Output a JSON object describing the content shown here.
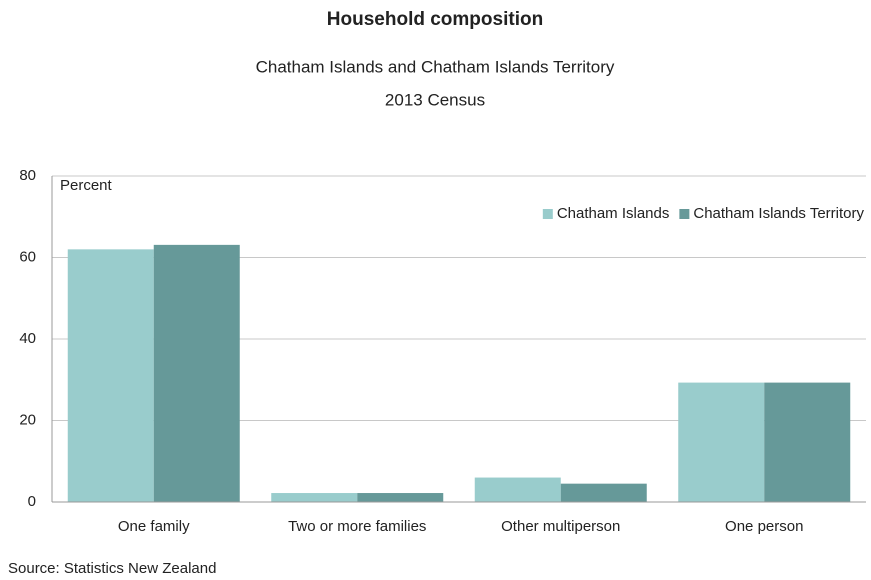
{
  "chart_data": {
    "type": "bar",
    "title": "Household composition",
    "subtitle": "Chatham Islands and Chatham Islands Territory",
    "subtitle2": "2013 Census",
    "y_label": "Percent",
    "source": "Source: Statistics New Zealand",
    "categories": [
      "One family",
      "Two or more families",
      "Other multiperson",
      "One person"
    ],
    "series": [
      {
        "name": "Chatham Islands",
        "color": "#99cccc",
        "values": [
          62,
          2.2,
          6,
          29.3
        ]
      },
      {
        "name": "Chatham Islands Territory",
        "color": "#669999",
        "values": [
          63.1,
          2.2,
          4.5,
          29.3
        ]
      }
    ],
    "ylim": [
      0,
      80
    ],
    "yticks": [
      0,
      20,
      40,
      60,
      80
    ],
    "grid": true,
    "legend": "top-right"
  }
}
